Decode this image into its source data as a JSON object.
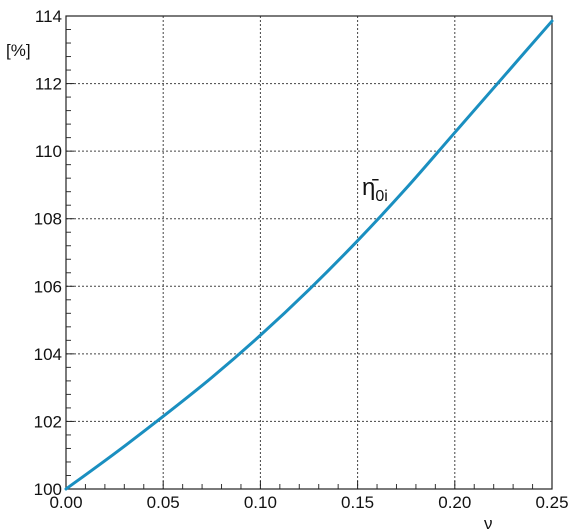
{
  "chart_data": {
    "type": "line",
    "title": "",
    "xlabel": "ν",
    "ylabel": "[%]",
    "xlim": [
      0.0,
      0.25
    ],
    "ylim": [
      100,
      114
    ],
    "grid": true,
    "x_tick_labels": [
      "0.00",
      "0.05",
      "0.10",
      "0.15",
      "0.20",
      "0.25"
    ],
    "y_tick_labels": [
      "100",
      "102",
      "104",
      "106",
      "108",
      "110",
      "112",
      "114"
    ],
    "series": [
      {
        "name": "η̄0i",
        "color": "#1a8fc0",
        "x": [
          0.0,
          0.025,
          0.05,
          0.075,
          0.1,
          0.125,
          0.15,
          0.175,
          0.2,
          0.225,
          0.25
        ],
        "y": [
          100.0,
          101.05,
          102.15,
          103.3,
          104.55,
          105.9,
          107.35,
          108.9,
          110.55,
          112.2,
          113.85
        ]
      }
    ],
    "annotation": {
      "symbol": "η̄",
      "subscript": "0i"
    }
  }
}
